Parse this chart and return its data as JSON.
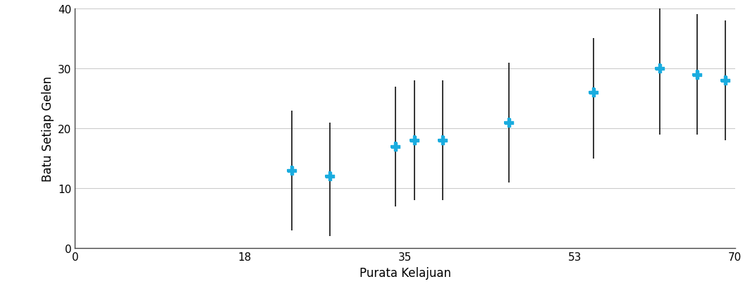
{
  "x": [
    23,
    27,
    34,
    36,
    39,
    46,
    55,
    62,
    66,
    69
  ],
  "y": [
    13,
    12,
    17,
    18,
    18,
    21,
    26,
    30,
    29,
    28
  ],
  "y_upper": [
    23,
    21,
    27,
    28,
    28,
    31,
    35,
    40,
    39,
    38
  ],
  "y_lower": [
    3,
    2,
    7,
    8,
    8,
    11,
    15,
    19,
    19,
    18
  ],
  "xlabel": "Purata Kelajuan",
  "ylabel": "Batu Setiap Gelen",
  "xlim": [
    0,
    70
  ],
  "ylim": [
    0,
    40
  ],
  "xticks": [
    0,
    18,
    35,
    53,
    70
  ],
  "yticks": [
    0,
    10,
    20,
    30,
    40
  ],
  "marker_color": "#1AACDF",
  "errorbar_color": "#111111",
  "grid_color": "#CCCCCC",
  "background_color": "#FFFFFF",
  "marker_size": 10,
  "capsize": 4,
  "linewidth": 1.2,
  "figsize": [
    10.64,
    4.31
  ],
  "dpi": 100
}
